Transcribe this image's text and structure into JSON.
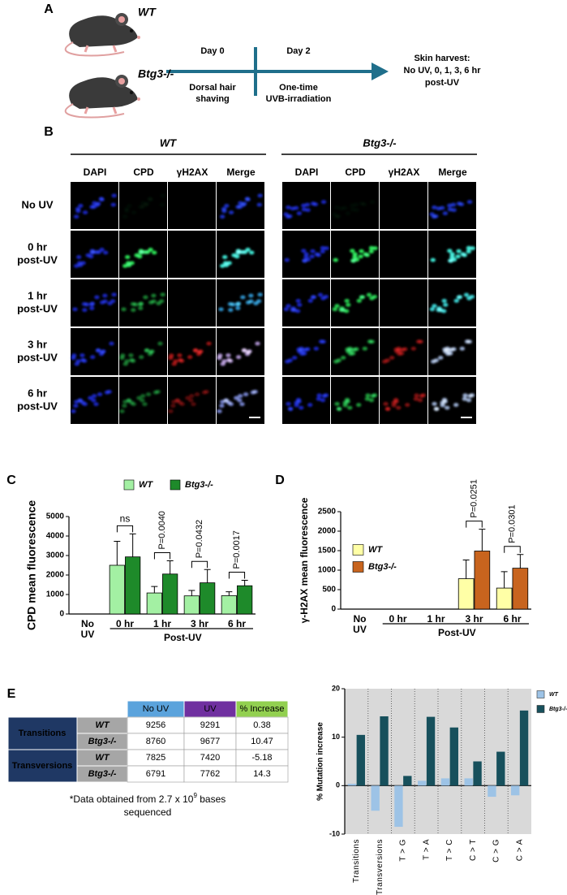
{
  "panel_a": {
    "label": "A",
    "genotypes": [
      "WT",
      "Btg3-/-"
    ],
    "steps": [
      {
        "day": "Day 0",
        "action": [
          "Dorsal hair",
          "shaving"
        ]
      },
      {
        "day": "Day 2",
        "action": [
          "One-time",
          "UVB-irradiation"
        ]
      }
    ],
    "endpoint": [
      "Skin harvest:",
      "No UV, 0, 1, 3, 6 hr",
      "post-UV"
    ]
  },
  "panel_b": {
    "label": "B",
    "groups": [
      "WT",
      "Btg3-/-"
    ],
    "channels": [
      "DAPI",
      "CPD",
      "γH2AX",
      "Merge"
    ],
    "channel_colors": [
      "#5b9bd5",
      "#00a550",
      "#e02020",
      "#000000"
    ],
    "conditions": [
      [
        "No UV"
      ],
      [
        "0 hr",
        "post-UV"
      ],
      [
        "1 hr",
        "post-UV"
      ],
      [
        "3 hr",
        "post-UV"
      ],
      [
        "6 hr",
        "post-UV"
      ]
    ]
  },
  "chart_data": [
    {
      "type": "bar",
      "label": "C",
      "ylabel": "CPD mean fluorescence",
      "categories": [
        "No UV",
        "0 hr",
        "1 hr",
        "3 hr",
        "6 hr"
      ],
      "group_label": "Post-UV",
      "series": [
        {
          "name": "WT",
          "color": "#a3f0a3",
          "values": [
            0,
            2500,
            1080,
            930,
            940
          ],
          "errors": [
            0,
            1230,
            330,
            280,
            200
          ]
        },
        {
          "name": "Btg3-/-",
          "color": "#1e8a2a",
          "values": [
            0,
            2930,
            2050,
            1600,
            1450
          ],
          "errors": [
            0,
            1180,
            680,
            680,
            280
          ]
        }
      ],
      "ylim": [
        0,
        5000
      ],
      "yticks": [
        0,
        1000,
        2000,
        3000,
        4000,
        5000
      ],
      "legend": "top",
      "annotations": [
        null,
        "ns",
        "P=0.0040",
        "P=0.0432",
        "P=0.0017"
      ]
    },
    {
      "type": "bar",
      "label": "D",
      "ylabel": "γ-H2AX mean fluorescence",
      "categories": [
        "No UV",
        "0 hr",
        "1 hr",
        "3 hr",
        "6 hr"
      ],
      "group_label": "Post-UV",
      "series": [
        {
          "name": "WT",
          "color": "#ffffa6",
          "values": [
            0,
            0,
            0,
            780,
            540
          ],
          "errors": [
            0,
            0,
            0,
            480,
            420
          ]
        },
        {
          "name": "Btg3-/-",
          "color": "#c8641e",
          "values": [
            0,
            0,
            0,
            1490,
            1050
          ],
          "errors": [
            0,
            0,
            0,
            560,
            350
          ]
        }
      ],
      "ylim": [
        0,
        2500
      ],
      "yticks": [
        0,
        500,
        1000,
        1500,
        2000,
        2500
      ],
      "legend": "upper left",
      "annotations": [
        null,
        null,
        null,
        "P=0.0251",
        "P=0.0301"
      ]
    },
    {
      "type": "bar",
      "ylabel": "% Mutation increase",
      "categories": [
        "Transitions",
        "Transversions",
        "T > G",
        "T > A",
        "T > C",
        "C > T",
        "C > G",
        "C > A"
      ],
      "series": [
        {
          "name": "WT",
          "color": "#9dc3e6",
          "values": [
            0.38,
            -5.18,
            -8.5,
            1.0,
            1.5,
            1.5,
            -2.3,
            -2.0
          ]
        },
        {
          "name": "Btg3-/-",
          "color": "#17505c",
          "values": [
            10.47,
            14.3,
            2.0,
            14.2,
            12.0,
            5.0,
            7.0,
            15.5
          ]
        }
      ],
      "ylim": [
        -10,
        20
      ],
      "yticks": [
        -10,
        0,
        10,
        20
      ],
      "legend": "right",
      "background": "#d9d9d9",
      "separators": true
    }
  ],
  "panel_e": {
    "label": "E",
    "table": {
      "header": [
        "No UV",
        "UV",
        "% Increase"
      ],
      "header_colors": [
        "#5ba3dc",
        "#7030a0",
        "#92d050"
      ],
      "groups": [
        "Transitions",
        "Transversions"
      ],
      "rows": [
        [
          "WT",
          9256,
          9291,
          0.38
        ],
        [
          "Btg3-/-",
          8760,
          9677,
          10.47
        ],
        [
          "WT",
          7825,
          7420,
          -5.18
        ],
        [
          "Btg3-/-",
          6791,
          7762,
          14.3
        ]
      ]
    },
    "note": [
      "*Data obtained from 2.7 x 10",
      "9",
      " bases",
      "sequenced"
    ]
  }
}
